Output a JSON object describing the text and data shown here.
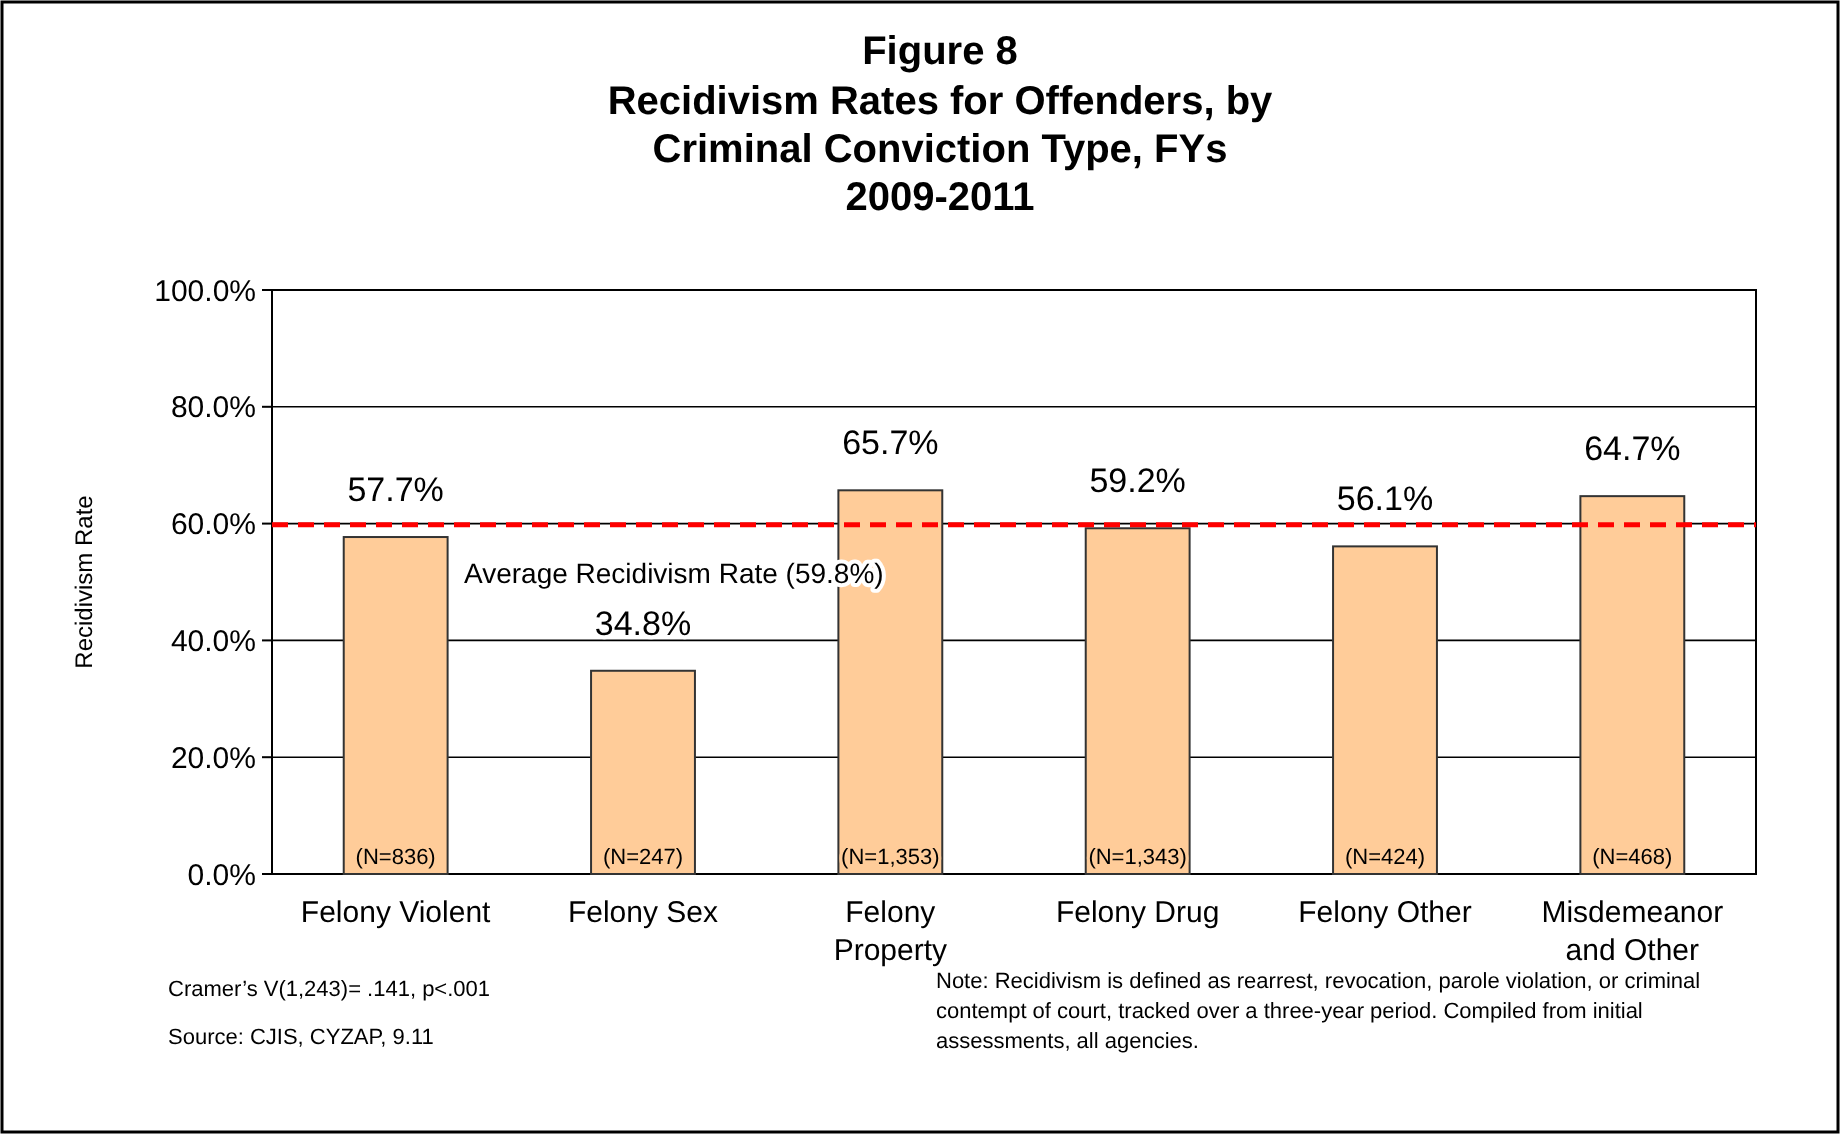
{
  "chart_data": {
    "type": "bar",
    "title": "Figure 8",
    "subtitle": "Recidivism Rates for Offenders, by Criminal Conviction Type, FYs 2009-2011",
    "ylabel": "Recidivism Rate",
    "categories": [
      "Felony Violent",
      "Felony Sex",
      "Felony Property",
      "Felony Drug",
      "Felony Other",
      "Misdemeanor and Other"
    ],
    "values": [
      57.7,
      34.8,
      65.7,
      59.2,
      56.1,
      64.7
    ],
    "value_labels": [
      "57.7%",
      "34.8%",
      "65.7%",
      "59.2%",
      "56.1%",
      "64.7%"
    ],
    "color": "#ffcc99",
    "ylim": [
      0,
      100
    ],
    "yticks": [
      {
        "value": 0,
        "label": "0.0%"
      },
      {
        "value": 20,
        "label": "20.0%"
      },
      {
        "value": 40,
        "label": "40.0%"
      },
      {
        "value": 60,
        "label": "60.0%"
      },
      {
        "value": 80,
        "label": "80.0%"
      },
      {
        "value": 100,
        "label": "100.0%"
      }
    ],
    "grid": "y",
    "ref_lines": [
      {
        "axis": "y",
        "value": 59.8,
        "label": "Average Recidivism Rate (59.8%)",
        "color": "#ff0000",
        "line_style": "dashed"
      }
    ],
    "annotations": [
      {
        "text": "(N=836)",
        "x": "Felony Violent",
        "y": 0
      },
      {
        "text": "(N=247)",
        "x": "Felony Sex",
        "y": 0
      },
      {
        "text": "(N=1,353)",
        "x": "Felony Property",
        "y": 0
      },
      {
        "text": "(N=1,343)",
        "x": "Felony Drug",
        "y": 0
      },
      {
        "text": "(N=424)",
        "x": "Felony Other",
        "y": 0
      },
      {
        "text": "(N=468)",
        "x": "Misdemeanor and Other",
        "y": 0
      },
      "Cramer’s V(1,243)= .141, p<.001",
      "Source: CJIS, CYZAP, 9.11",
      "Note: Recidivism is defined as rearrest, revocation, parole violation, or criminal contempt of court, tracked over a three-year period. Compiled from initial assessments, all agencies."
    ]
  }
}
